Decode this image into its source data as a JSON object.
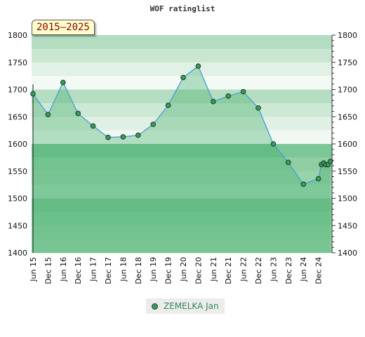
{
  "chart_data": {
    "type": "line",
    "title": "WOF ratinglist",
    "period_label": "2015–2025",
    "xlabel": "",
    "ylabel": "",
    "ylim": [
      1400,
      1800
    ],
    "yticks": [
      1400,
      1450,
      1500,
      1550,
      1600,
      1650,
      1700,
      1750,
      1800
    ],
    "x_tick_labels": [
      "Jun 15",
      "Dec 15",
      "Jun 16",
      "Dec 16",
      "Jun 17",
      "Dec 17",
      "Jun 18",
      "Dec 18",
      "Jun 19",
      "Dec 19",
      "Jun 20",
      "Dec 20",
      "Jun 21",
      "Dec 21",
      "Jun 22",
      "Dec 22",
      "Jun 23",
      "Dec 23",
      "Jun 24",
      "Dec 24"
    ],
    "series": [
      {
        "name": "ZEMELKA Jan",
        "color": "#3a9a5c",
        "points": [
          {
            "x": 0,
            "y": 1692
          },
          {
            "x": 1,
            "y": 1654
          },
          {
            "x": 2,
            "y": 1713
          },
          {
            "x": 3,
            "y": 1656
          },
          {
            "x": 4,
            "y": 1633
          },
          {
            "x": 5,
            "y": 1612
          },
          {
            "x": 6,
            "y": 1613
          },
          {
            "x": 7,
            "y": 1616
          },
          {
            "x": 8,
            "y": 1636
          },
          {
            "x": 9,
            "y": 1671
          },
          {
            "x": 10,
            "y": 1722
          },
          {
            "x": 11,
            "y": 1743
          },
          {
            "x": 12,
            "y": 1678
          },
          {
            "x": 13,
            "y": 1688
          },
          {
            "x": 14,
            "y": 1696
          },
          {
            "x": 15,
            "y": 1666
          },
          {
            "x": 16,
            "y": 1600
          },
          {
            "x": 17,
            "y": 1566
          },
          {
            "x": 18,
            "y": 1526
          },
          {
            "x": 19,
            "y": 1536
          },
          {
            "x": 19.2,
            "y": 1562
          },
          {
            "x": 19.35,
            "y": 1565
          },
          {
            "x": 19.5,
            "y": 1562
          },
          {
            "x": 19.65,
            "y": 1562
          },
          {
            "x": 19.8,
            "y": 1568
          }
        ]
      }
    ],
    "legend_position": "bottom",
    "grid": false
  }
}
